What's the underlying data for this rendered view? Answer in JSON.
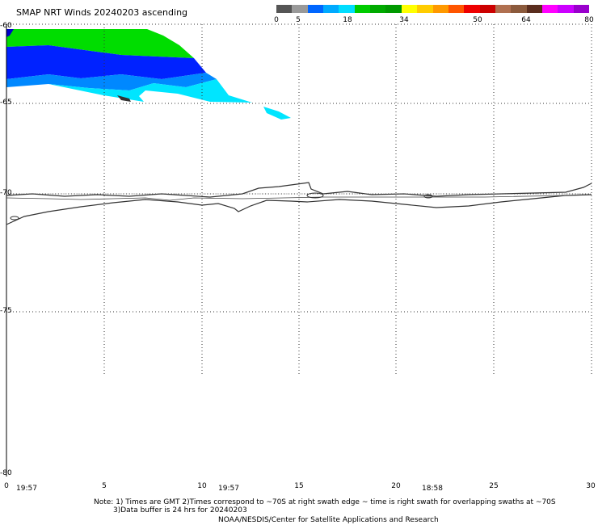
{
  "title": "SMAP NRT Winds 20240203 ascending",
  "colorbar": {
    "segments": [
      {
        "color": "#555555"
      },
      {
        "color": "#999999"
      },
      {
        "color": "#0066ff"
      },
      {
        "color": "#00aaff"
      },
      {
        "color": "#00ddff"
      },
      {
        "color": "#00cc00"
      },
      {
        "color": "#00aa00"
      },
      {
        "color": "#009900"
      },
      {
        "color": "#ffff00"
      },
      {
        "color": "#ffcc00"
      },
      {
        "color": "#ff9900"
      },
      {
        "color": "#ff5500"
      },
      {
        "color": "#ee0000"
      },
      {
        "color": "#cc0000"
      },
      {
        "color": "#b07050"
      },
      {
        "color": "#8b5a3c"
      },
      {
        "color": "#5a2d1e"
      },
      {
        "color": "#ff00ff"
      },
      {
        "color": "#cc00ff"
      },
      {
        "color": "#9900cc"
      }
    ],
    "ticks": [
      "0",
      "5",
      "18",
      "34",
      "50",
      "64",
      "80"
    ]
  },
  "axes": {
    "lat_labels": [
      "-60",
      "-65",
      "-70",
      "-75",
      "-80"
    ],
    "lon_labels": [
      "0",
      "5",
      "10",
      "15",
      "20",
      "25",
      "30"
    ],
    "times": [
      "19:57",
      "19:57",
      "18:58"
    ]
  },
  "notes": {
    "line1": "Note: 1) Times are GMT 2)Times correspond to ~70S at right swath edge ~ time is right swath for overlapping swaths at ~70S",
    "line2": "3)Data buffer is 24 hrs for 20240203",
    "line3": "NOAA/NESDIS/Center for Satellite Applications and Research"
  }
}
